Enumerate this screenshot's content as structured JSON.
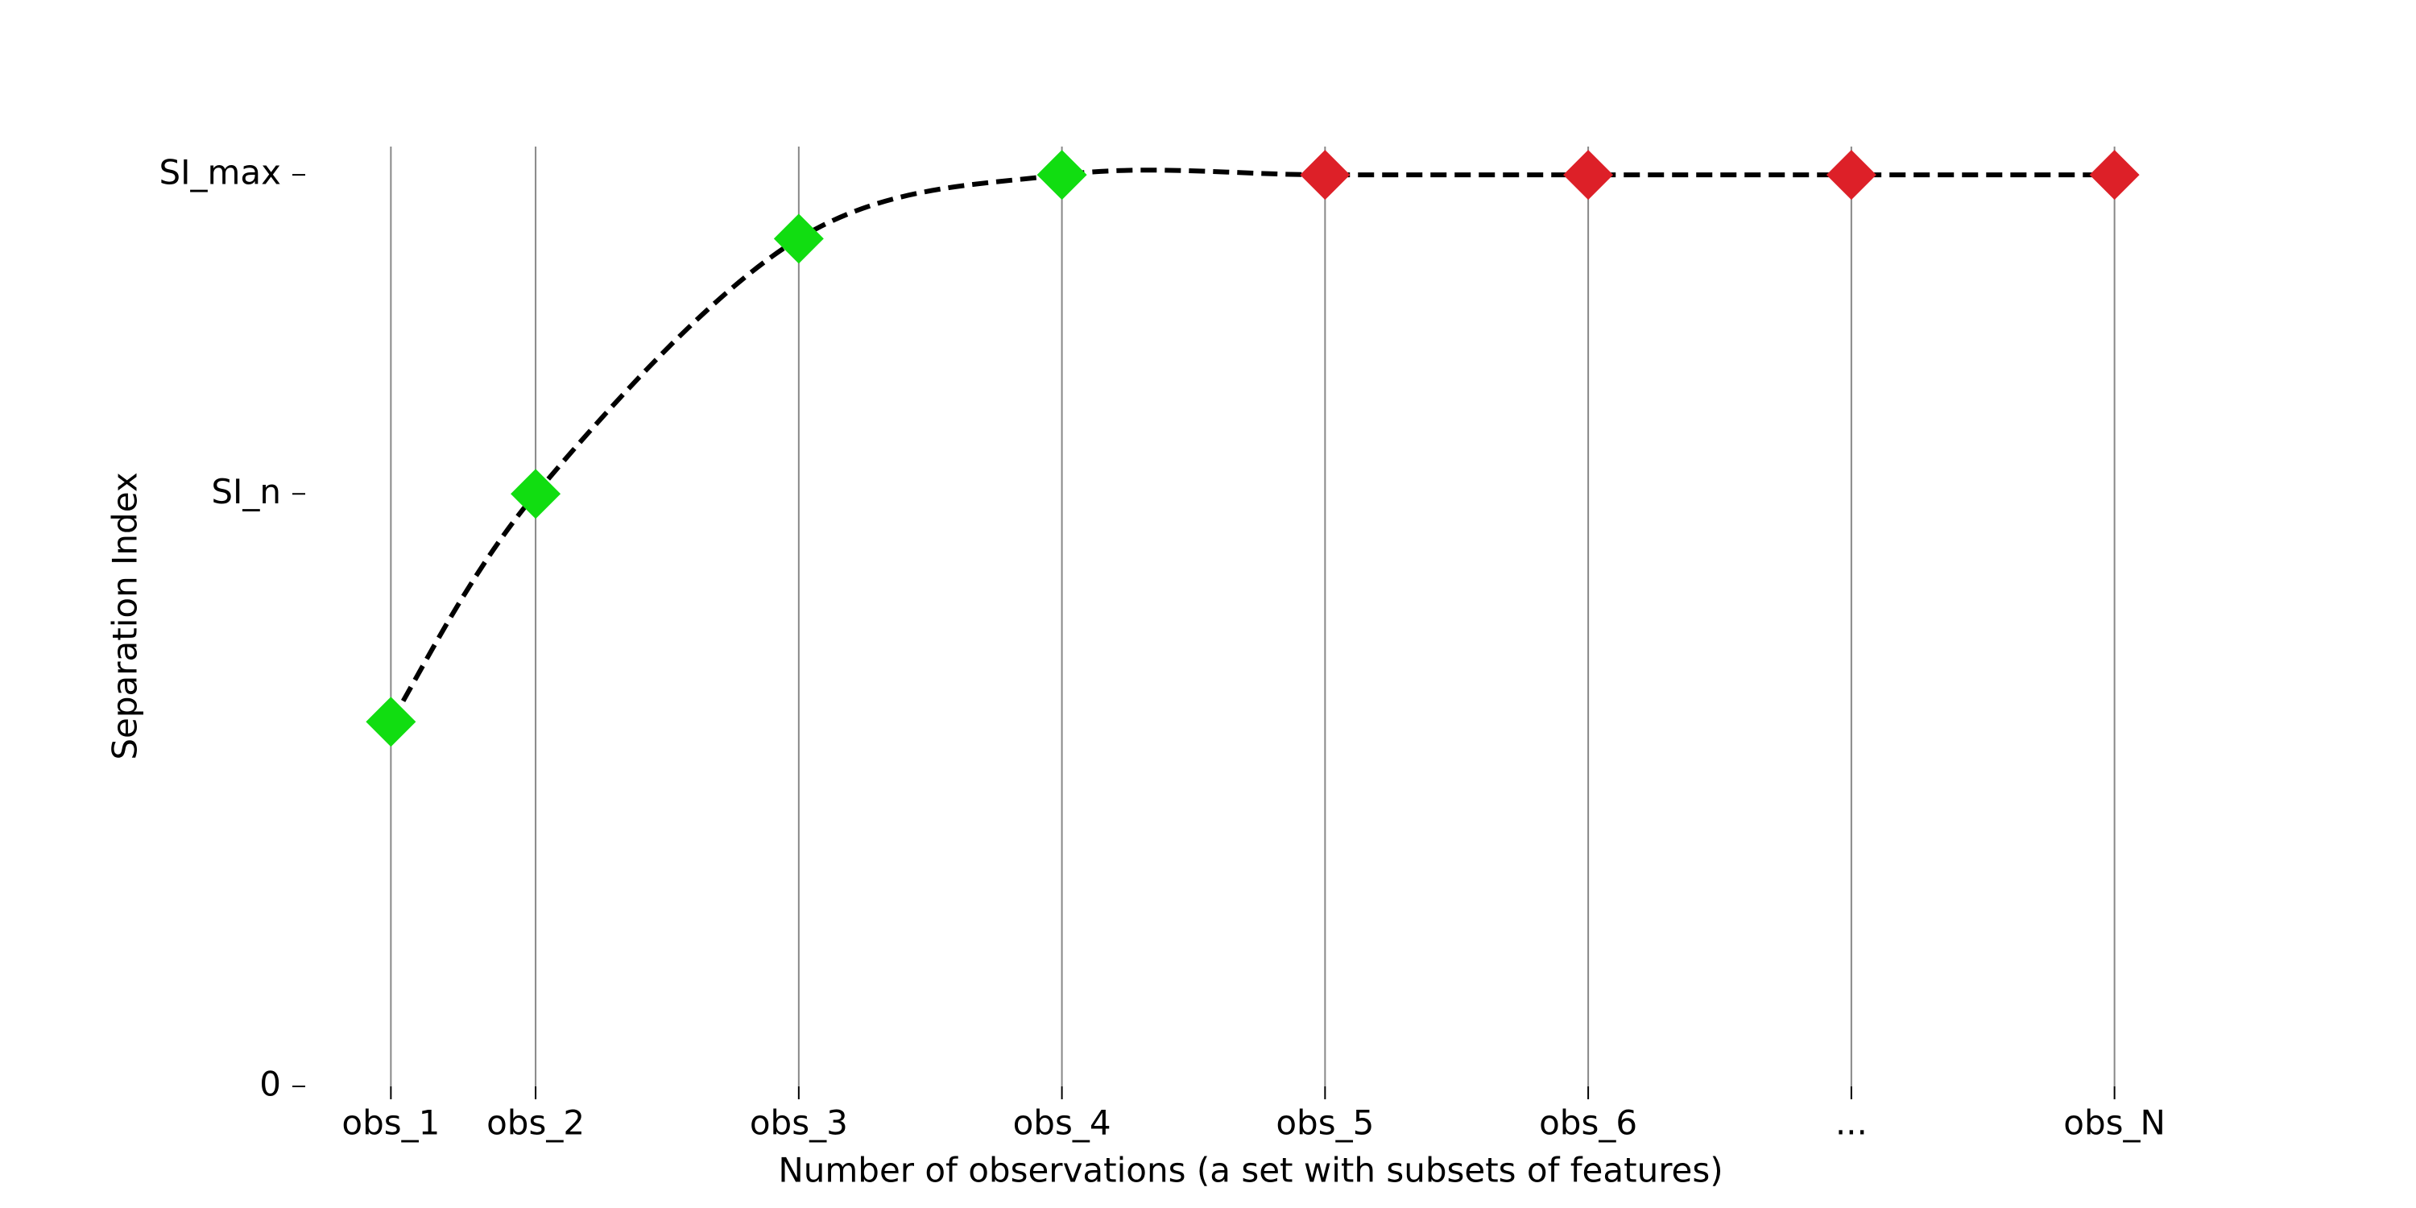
{
  "chart_data": {
    "type": "line",
    "x_label": "Number of observations (a set with subsets of features)",
    "y_label": "Separation Index",
    "series": [
      {
        "x": [
          0.45,
          1,
          2,
          3,
          4,
          5,
          6,
          7
        ],
        "values": [
          0.4,
          0.65,
          0.93,
          1.0,
          1.0,
          1.0,
          1.0,
          1.0
        ],
        "color": "#000000",
        "marker_colors": [
          "#11dd11",
          "#11dd11",
          "#11dd11",
          "#11dd11",
          "#dd2028",
          "#dd2028",
          "#dd2028",
          "#dd2028"
        ]
      }
    ],
    "xlim": [
      0.1,
      7.5
    ],
    "ylim": [
      0,
      1.031
    ],
    "xticks": [
      {
        "value": 0.45,
        "label": "obs_1"
      },
      {
        "value": 1,
        "label": "obs_2"
      },
      {
        "value": 2,
        "label": "obs_3"
      },
      {
        "value": 3,
        "label": "obs_4"
      },
      {
        "value": 4,
        "label": "obs_5"
      },
      {
        "value": 5,
        "label": "obs_6"
      },
      {
        "value": 6,
        "label": "..."
      },
      {
        "value": 7,
        "label": "obs_N"
      }
    ],
    "yticks": [
      0,
      {
        "value": 0.65,
        "label": "SI_n"
      },
      {
        "value": 1.0,
        "label": "SI_max"
      }
    ],
    "grid": "x"
  }
}
